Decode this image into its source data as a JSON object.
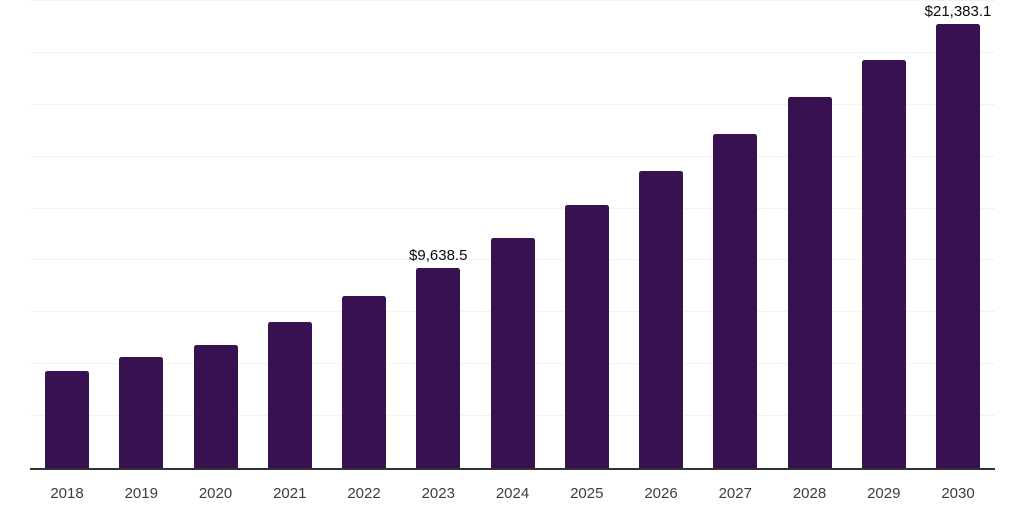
{
  "colors": {
    "background": "#ffffff",
    "bar": "#371150",
    "gridline": "#f2f2f2",
    "axis_line": "#333333",
    "tick_label": "#3d3d3d",
    "data_label": "#0a0a0a"
  },
  "chart_data": {
    "type": "bar",
    "title": "",
    "xlabel": "",
    "ylabel": "",
    "categories": [
      "2018",
      "2019",
      "2020",
      "2021",
      "2022",
      "2023",
      "2024",
      "2025",
      "2026",
      "2027",
      "2028",
      "2029",
      "2030"
    ],
    "values": [
      4660,
      5350,
      5950,
      7020,
      8290,
      9638.5,
      11090,
      12660,
      14330,
      16100,
      17870,
      19640,
      21383.1
    ],
    "data_labels": [
      "",
      "",
      "",
      "",
      "",
      "$9,638.5",
      "",
      "",
      "",
      "",
      "",
      "",
      "$21,383.1"
    ],
    "ylim": [
      0,
      22500
    ],
    "gridline_step": 2500,
    "grid": "horizontal",
    "legend_position": "none",
    "y_axis_ticks_visible": false
  }
}
